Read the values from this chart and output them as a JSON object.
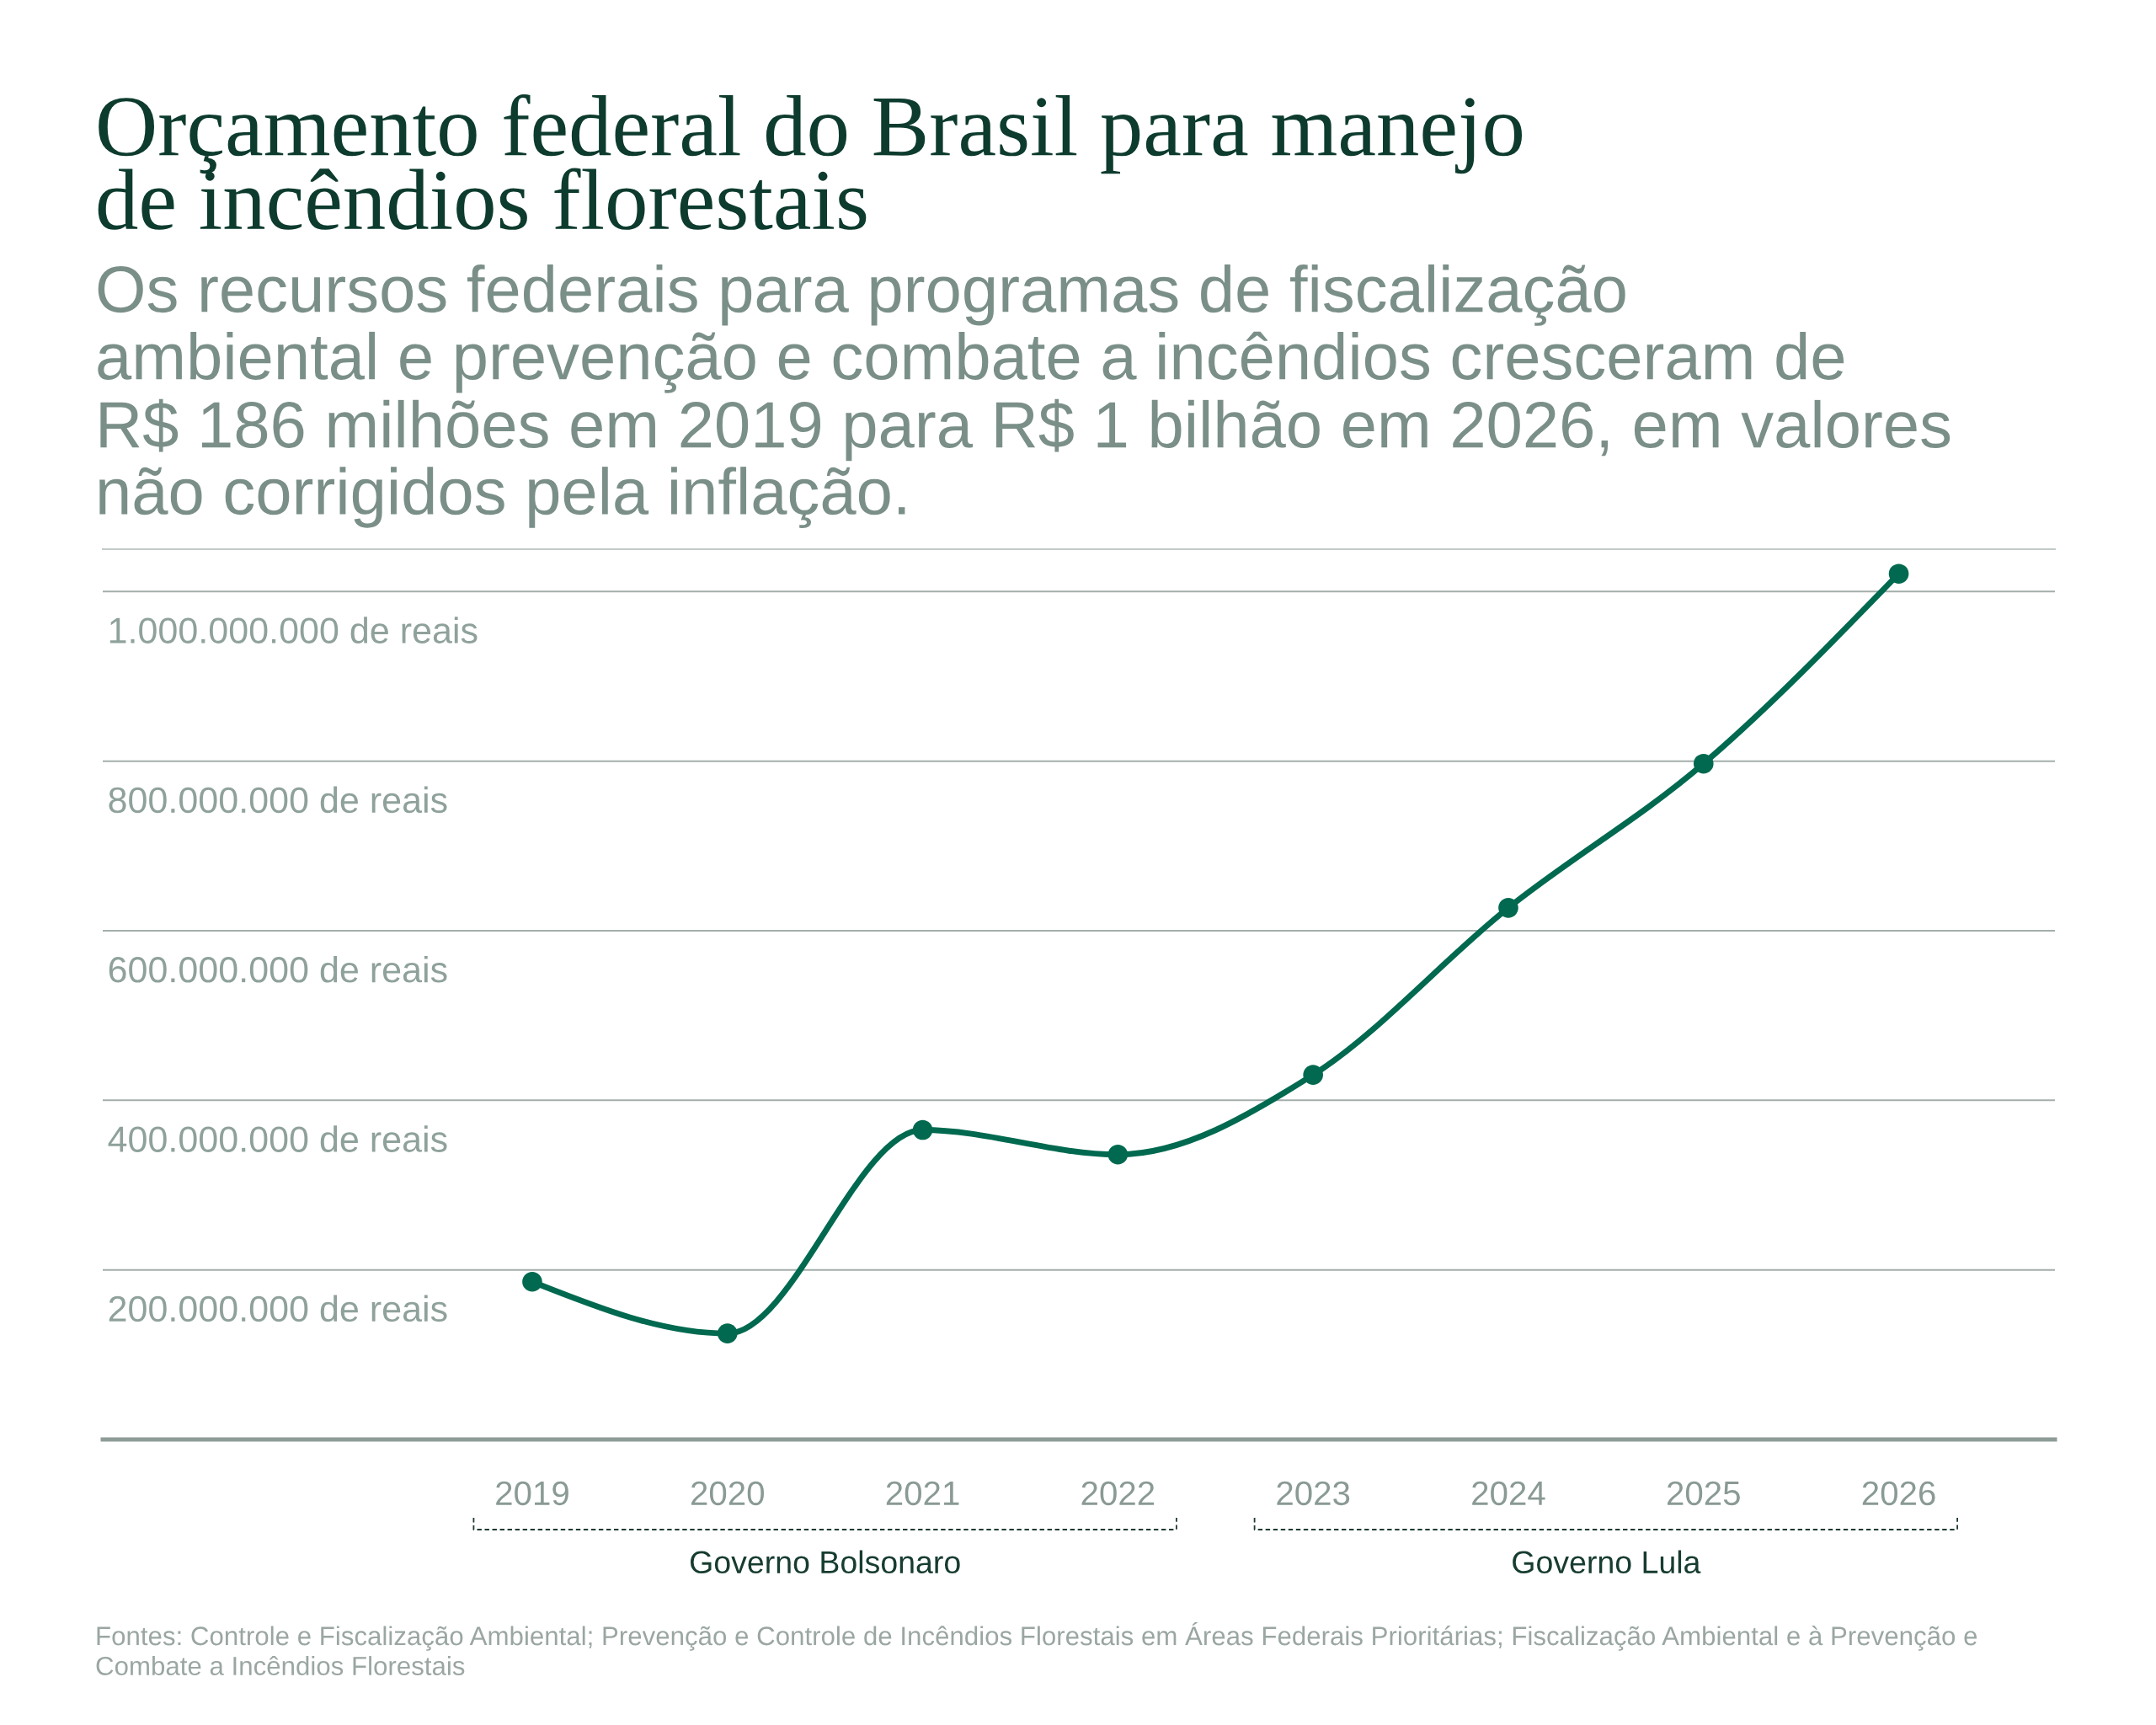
{
  "chart_data": {
    "type": "line",
    "title": "Orçamento federal do Brasil para manejo\nde incêndios florestais",
    "subtitle": "Os recursos federais para programas de fiscalização\nambiental e prevenção e combate a incêndios cresceram de\nR$ 186 milhões em 2019 para R$ 1 bilhão em 2026, em valores\nnão corrigidos pela inflação.",
    "categories": [
      "2019",
      "2020",
      "2021",
      "2022",
      "2023",
      "2024",
      "2025",
      "2026"
    ],
    "series": [
      {
        "color": "#00694f",
        "values": [
          186000000,
          125000000,
          365000000,
          336000000,
          430000000,
          627000000,
          797000000,
          1021000000
        ]
      }
    ],
    "ylim": [
      0,
      1050000000
    ],
    "yticks": [
      {
        "value": 200000000,
        "label": "200.000.000 de reais"
      },
      {
        "value": 400000000,
        "label": "400.000.000 de reais"
      },
      {
        "value": 600000000,
        "label": "600.000.000 de reais"
      },
      {
        "value": 800000000,
        "label": "800.000.000 de reais"
      },
      {
        "value": 1000000000,
        "label": "1.000.000.000 de reais"
      }
    ],
    "grid": "y",
    "marker": "circle",
    "line_style": "solid",
    "annotations": [
      "Governo Bolsonaro",
      "Governo Lula",
      "Fontes: Controle e Fiscalização Ambiental; Prevenção e Controle de Incêndios Florestais em Áreas Federais Prioritárias; Fiscalização Ambiental e à Prevenção e\nCombate a Incêndios Florestais"
    ]
  }
}
